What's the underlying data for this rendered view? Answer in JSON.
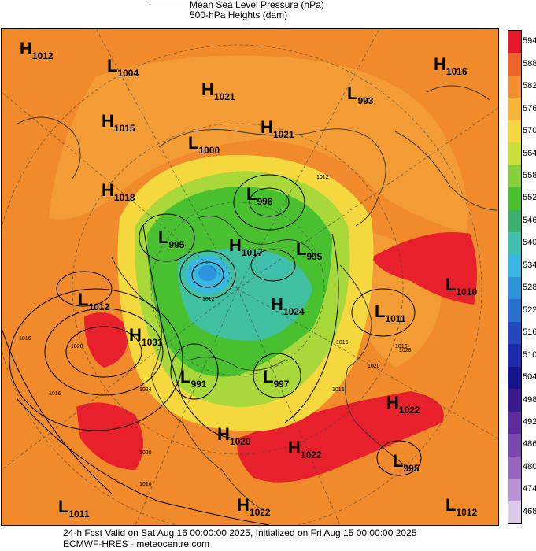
{
  "legend": {
    "line1": "Mean Sea Level Pressure (hPa)",
    "line2": "500-hPa Heights (dam)"
  },
  "colorbar": {
    "labels": [
      "594",
      "588",
      "582",
      "576",
      "570",
      "564",
      "558",
      "552",
      "546",
      "540",
      "534",
      "528",
      "522",
      "516",
      "510",
      "504",
      "498",
      "492",
      "486",
      "480",
      "474",
      "468"
    ],
    "colors": [
      "#e8182a",
      "#f0642c",
      "#f48c30",
      "#f6b43a",
      "#f4d83e",
      "#c8e038",
      "#88d03a",
      "#48c030",
      "#3cb070",
      "#40c0b0",
      "#38b8e0",
      "#2c94dc",
      "#2a70d0",
      "#2448c0",
      "#1c2ab0",
      "#141490",
      "#3a1890",
      "#5e2c9e",
      "#7a48ae",
      "#9866be",
      "#b892d2",
      "#dccaea"
    ]
  },
  "centers": [
    {
      "type": "H",
      "value": "1012"
    },
    {
      "type": "L",
      "value": "1004"
    },
    {
      "type": "H",
      "value": "1021"
    },
    {
      "type": "L",
      "value": "993"
    },
    {
      "type": "H",
      "value": "1016"
    },
    {
      "type": "H",
      "value": "1015"
    },
    {
      "type": "L",
      "value": "1000"
    },
    {
      "type": "H",
      "value": "1021"
    },
    {
      "type": "L",
      "value": "996"
    },
    {
      "type": "H",
      "value": "1018"
    },
    {
      "type": "L",
      "value": "995"
    },
    {
      "type": "H",
      "value": "1017"
    },
    {
      "type": "L",
      "value": "995"
    },
    {
      "type": "L",
      "value": "1010"
    },
    {
      "type": "L",
      "value": "1012"
    },
    {
      "type": "H",
      "value": "1024"
    },
    {
      "type": "L",
      "value": "1011"
    },
    {
      "type": "H",
      "value": "1031"
    },
    {
      "type": "L",
      "value": "991"
    },
    {
      "type": "L",
      "value": "997"
    },
    {
      "type": "H",
      "value": "1022"
    },
    {
      "type": "H",
      "value": "1020"
    },
    {
      "type": "H",
      "value": "1022"
    },
    {
      "type": "L",
      "value": "995"
    },
    {
      "type": "L",
      "value": "1011"
    },
    {
      "type": "H",
      "value": "1022"
    },
    {
      "type": "L",
      "value": "1012"
    }
  ],
  "isobar_labels": [
    "1012",
    "1016",
    "1016",
    "1028",
    "1024",
    "1020",
    "1016",
    "1016",
    "1020",
    "1016",
    "1028",
    "1012",
    "1016"
  ],
  "footer": {
    "line1": "24-h Fcst Valid on Sat Aug 16 00:00:00 2025, Initialized on Fri Aug 15 00:00:00 2025",
    "line2": "ECMWF-HRES  - meteocentre.com"
  }
}
